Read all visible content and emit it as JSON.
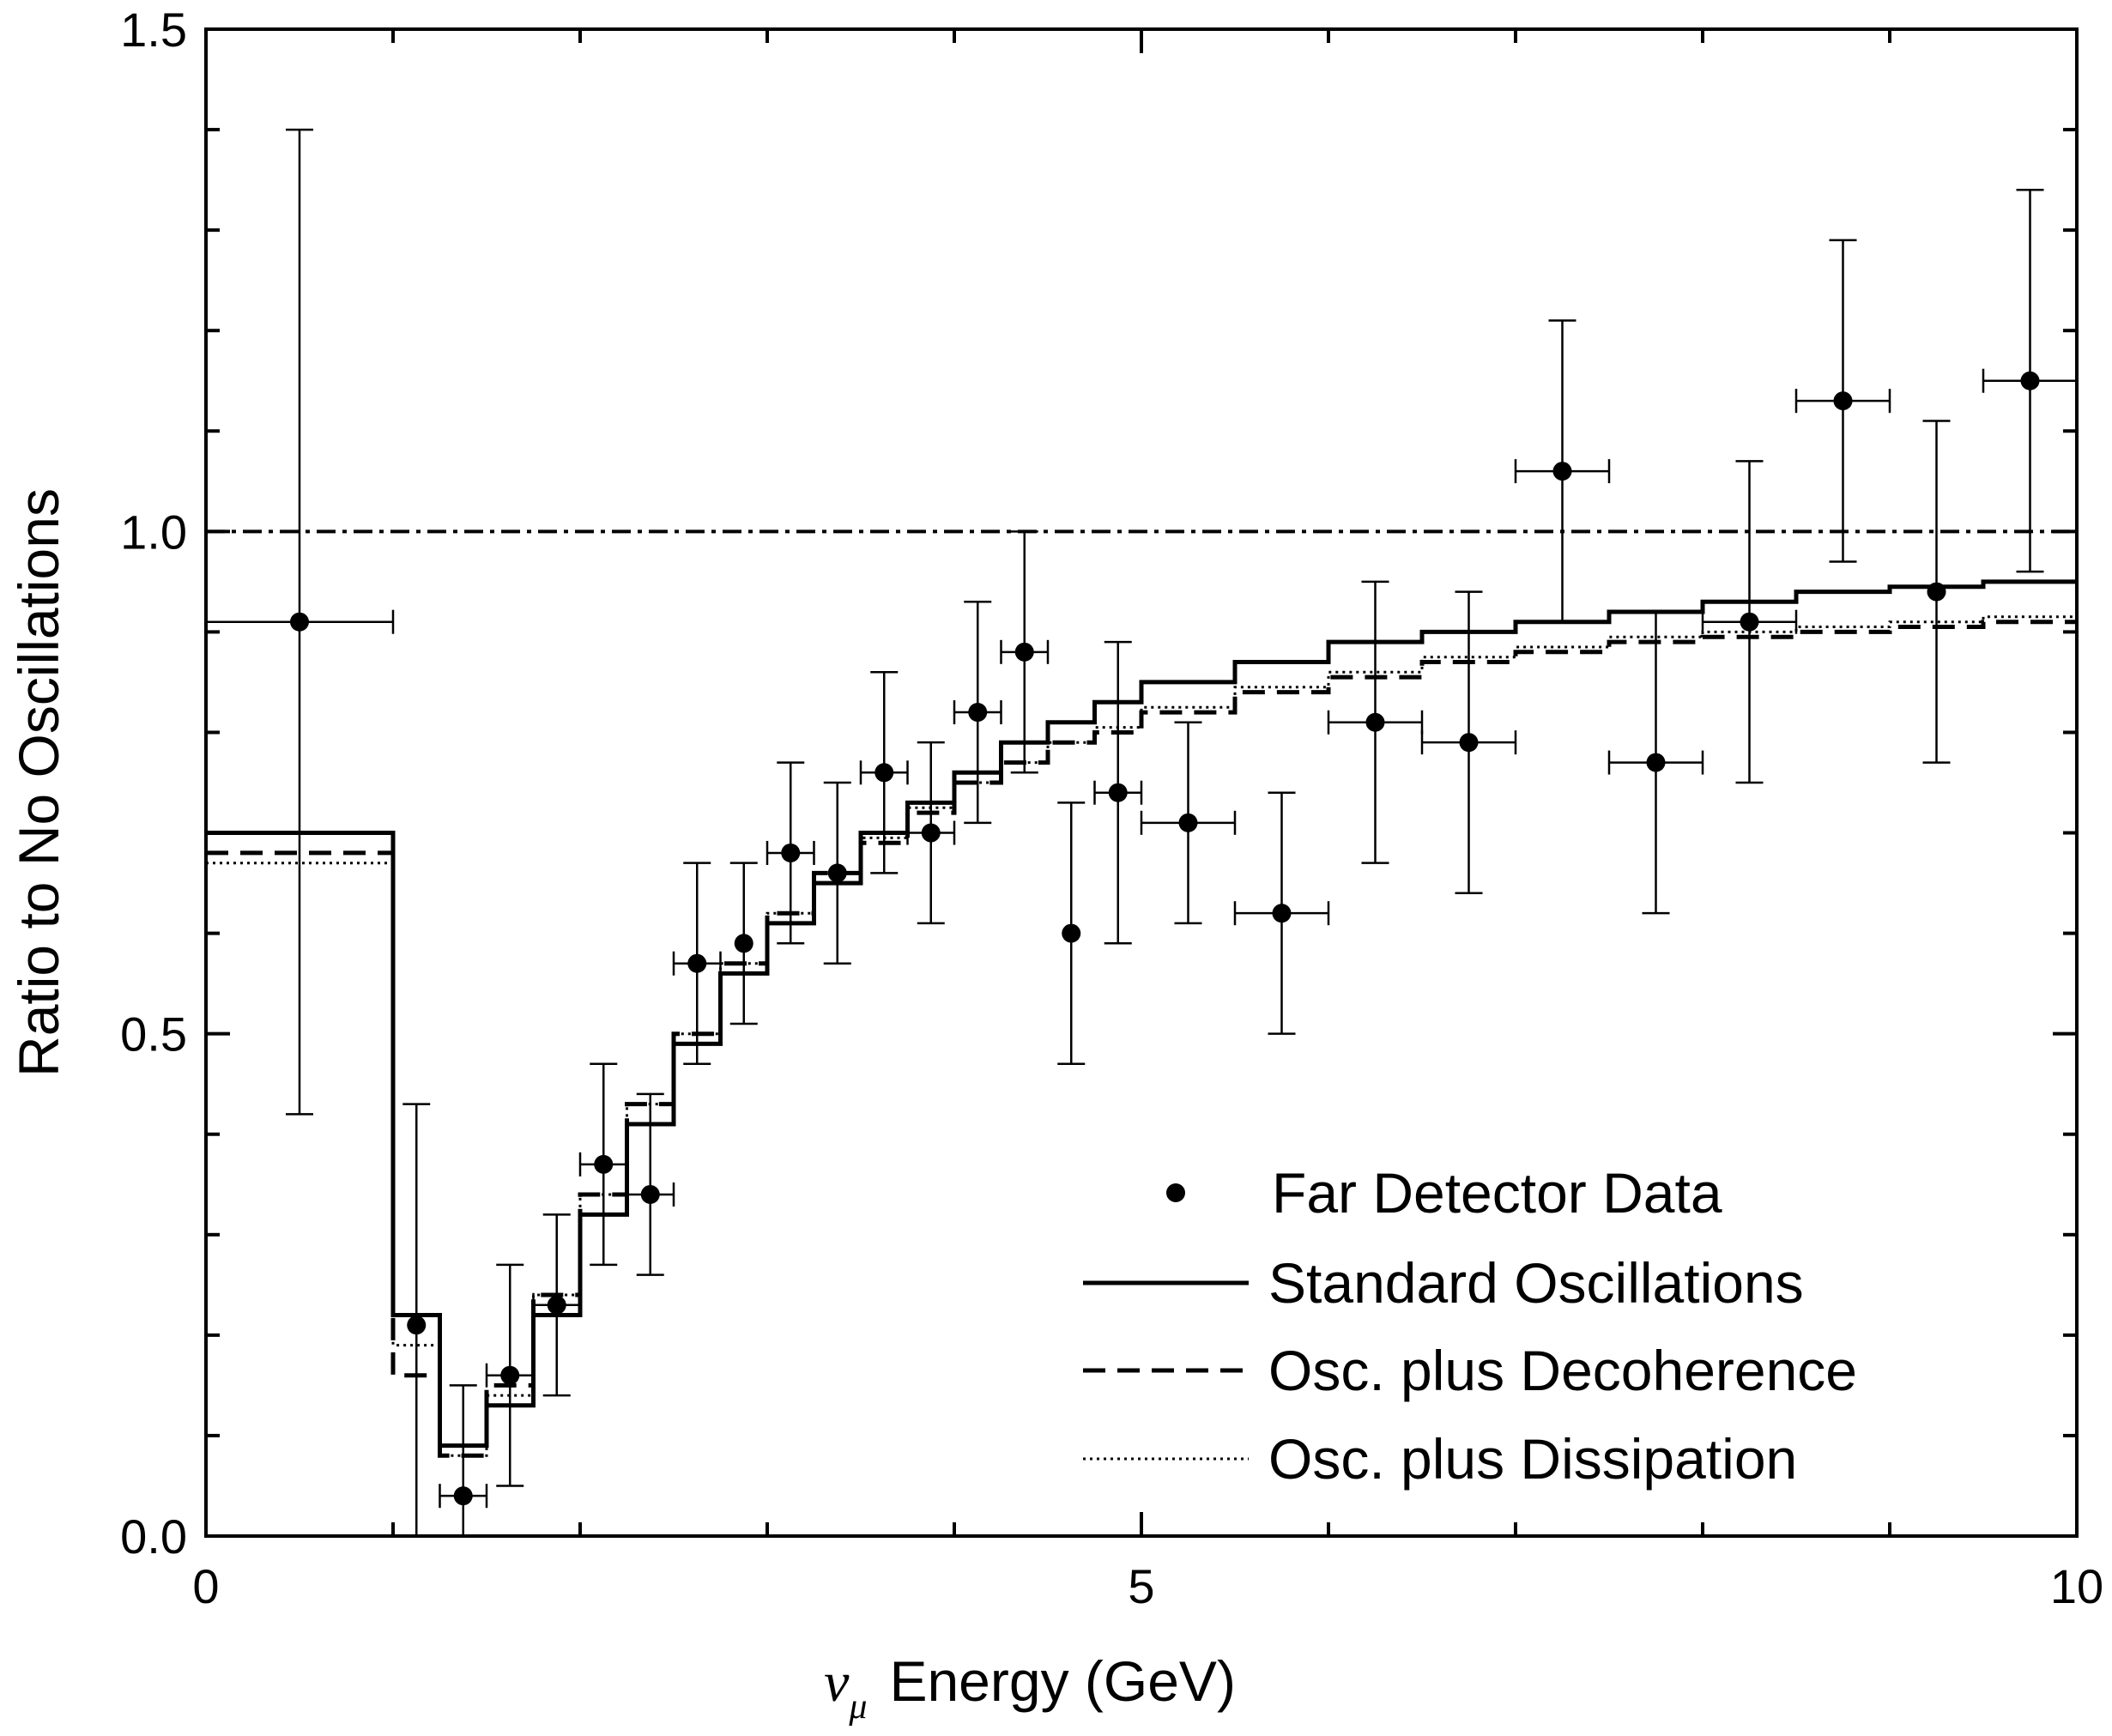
{
  "chart_data": {
    "type": "line",
    "title": "",
    "xlabel_symbol": "ν",
    "xlabel_subscript": "μ",
    "xlabel": "Energy (GeV)",
    "ylabel": "Ratio to No Oscillations",
    "xlim": [
      0,
      10
    ],
    "ylim": [
      0,
      1.5
    ],
    "x_ticks": [
      0,
      5,
      10
    ],
    "x_tick_labels": [
      "0",
      "5",
      "10"
    ],
    "x_minor_ticks": [
      1,
      2,
      3,
      4,
      6,
      7,
      8,
      9
    ],
    "y_ticks": [
      0,
      0.5,
      1.0,
      1.5
    ],
    "y_tick_labels": [
      "0.0",
      "0.5",
      "1.0",
      "1.5"
    ],
    "y_minor_ticks": [
      0.1,
      0.2,
      0.3,
      0.4,
      0.6,
      0.7,
      0.8,
      0.9,
      1.1,
      1.2,
      1.3,
      1.4
    ],
    "legend_position": "bottom-right",
    "bin_edges": [
      0,
      1,
      1.25,
      1.5,
      1.75,
      2,
      2.25,
      2.5,
      2.75,
      3,
      3.25,
      3.5,
      3.75,
      4,
      4.25,
      4.5,
      4.75,
      5,
      5.5,
      6,
      6.5,
      7,
      7.5,
      8,
      8.5,
      9,
      9.5,
      10
    ],
    "reference_line": {
      "name": "No Oscillations",
      "y": 1.0,
      "style": "dash-dot"
    },
    "series": [
      {
        "name": "Far Detector Data",
        "kind": "points",
        "points": [
          {
            "x": 0.5,
            "y": 0.91,
            "xerr": 0.5,
            "ylo": 0.42,
            "yhi": 1.4
          },
          {
            "x": 1.125,
            "y": 0.21,
            "xerr": 0.0,
            "ylo": 0.0,
            "yhi": 0.43
          },
          {
            "x": 1.375,
            "y": 0.04,
            "xerr": 0.125,
            "ylo": 0.0,
            "yhi": 0.15
          },
          {
            "x": 1.625,
            "y": 0.16,
            "xerr": 0.125,
            "ylo": 0.05,
            "yhi": 0.27
          },
          {
            "x": 1.875,
            "y": 0.23,
            "xerr": 0.125,
            "ylo": 0.14,
            "yhi": 0.32
          },
          {
            "x": 2.125,
            "y": 0.37,
            "xerr": 0.125,
            "ylo": 0.27,
            "yhi": 0.47
          },
          {
            "x": 2.375,
            "y": 0.34,
            "xerr": 0.125,
            "ylo": 0.26,
            "yhi": 0.44
          },
          {
            "x": 2.625,
            "y": 0.57,
            "xerr": 0.125,
            "ylo": 0.47,
            "yhi": 0.67
          },
          {
            "x": 2.875,
            "y": 0.59,
            "xerr": 0.0,
            "ylo": 0.51,
            "yhi": 0.67
          },
          {
            "x": 3.125,
            "y": 0.68,
            "xerr": 0.125,
            "ylo": 0.59,
            "yhi": 0.77
          },
          {
            "x": 3.375,
            "y": 0.66,
            "xerr": 0.0,
            "ylo": 0.57,
            "yhi": 0.75
          },
          {
            "x": 3.625,
            "y": 0.76,
            "xerr": 0.125,
            "ylo": 0.66,
            "yhi": 0.86
          },
          {
            "x": 3.875,
            "y": 0.7,
            "xerr": 0.125,
            "ylo": 0.61,
            "yhi": 0.79
          },
          {
            "x": 4.125,
            "y": 0.82,
            "xerr": 0.125,
            "ylo": 0.71,
            "yhi": 0.93
          },
          {
            "x": 4.375,
            "y": 0.88,
            "xerr": 0.125,
            "ylo": 0.76,
            "yhi": 1.0
          },
          {
            "x": 4.625,
            "y": 0.6,
            "xerr": 0.0,
            "ylo": 0.47,
            "yhi": 0.73
          },
          {
            "x": 4.875,
            "y": 0.74,
            "xerr": 0.125,
            "ylo": 0.59,
            "yhi": 0.89
          },
          {
            "x": 5.25,
            "y": 0.71,
            "xerr": 0.25,
            "ylo": 0.61,
            "yhi": 0.81
          },
          {
            "x": 5.75,
            "y": 0.62,
            "xerr": 0.25,
            "ylo": 0.5,
            "yhi": 0.74
          },
          {
            "x": 6.25,
            "y": 0.81,
            "xerr": 0.25,
            "ylo": 0.67,
            "yhi": 0.95
          },
          {
            "x": 6.75,
            "y": 0.79,
            "xerr": 0.25,
            "ylo": 0.64,
            "yhi": 0.94
          },
          {
            "x": 7.25,
            "y": 1.06,
            "xerr": 0.25,
            "ylo": 0.91,
            "yhi": 1.21
          },
          {
            "x": 7.75,
            "y": 0.77,
            "xerr": 0.25,
            "ylo": 0.62,
            "yhi": 0.92
          },
          {
            "x": 8.25,
            "y": 0.91,
            "xerr": 0.25,
            "ylo": 0.75,
            "yhi": 1.07
          },
          {
            "x": 8.75,
            "y": 1.13,
            "xerr": 0.25,
            "ylo": 0.97,
            "yhi": 1.29
          },
          {
            "x": 9.25,
            "y": 0.94,
            "xerr": 0.0,
            "ylo": 0.77,
            "yhi": 1.11
          },
          {
            "x": 9.75,
            "y": 1.15,
            "xerr": 0.25,
            "ylo": 0.96,
            "yhi": 1.34
          }
        ]
      },
      {
        "name": "Standard Oscillations",
        "kind": "step",
        "style": "solid",
        "values": [
          0.7,
          0.22,
          0.09,
          0.13,
          0.22,
          0.32,
          0.41,
          0.49,
          0.56,
          0.61,
          0.65,
          0.7,
          0.73,
          0.76,
          0.79,
          0.81,
          0.83,
          0.85,
          0.87,
          0.89,
          0.9,
          0.91,
          0.92,
          0.93,
          0.94,
          0.945,
          0.95
        ]
      },
      {
        "name": "Osc. plus Decoherence",
        "kind": "step",
        "style": "dashed",
        "values": [
          0.68,
          0.16,
          0.08,
          0.15,
          0.24,
          0.34,
          0.43,
          0.5,
          0.57,
          0.62,
          0.66,
          0.69,
          0.72,
          0.75,
          0.77,
          0.79,
          0.8,
          0.82,
          0.84,
          0.855,
          0.87,
          0.88,
          0.89,
          0.895,
          0.9,
          0.905,
          0.91
        ]
      },
      {
        "name": "Osc. plus Dissipation",
        "kind": "step",
        "style": "dotted",
        "values": [
          0.67,
          0.19,
          0.08,
          0.14,
          0.24,
          0.34,
          0.43,
          0.5,
          0.57,
          0.62,
          0.66,
          0.695,
          0.725,
          0.75,
          0.77,
          0.79,
          0.805,
          0.825,
          0.845,
          0.86,
          0.875,
          0.885,
          0.895,
          0.9,
          0.905,
          0.91,
          0.915
        ]
      }
    ]
  }
}
